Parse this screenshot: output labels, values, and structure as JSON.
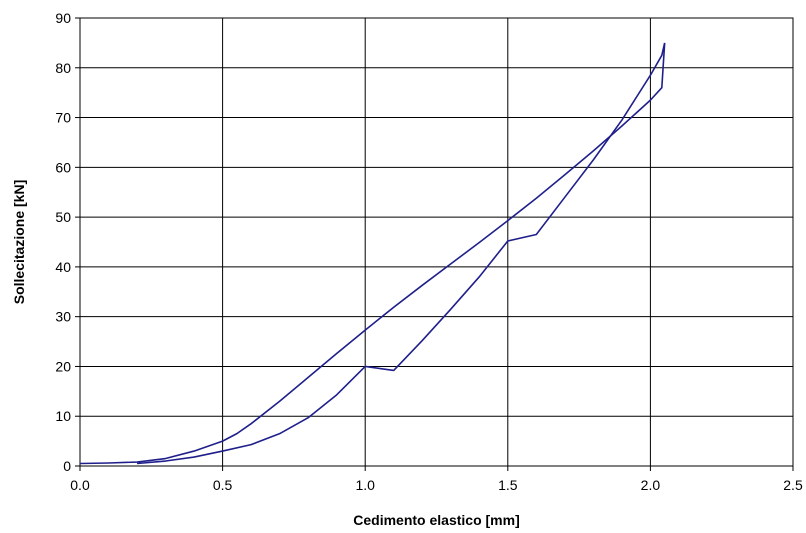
{
  "chart_data": {
    "type": "line",
    "title": "",
    "xlabel": "Cedimento elastico [mm]",
    "ylabel": "Sollecitazione [kN]",
    "xlim": [
      0,
      2.5
    ],
    "ylim": [
      0,
      90
    ],
    "x_ticks": [
      0.0,
      0.5,
      1.0,
      1.5,
      2.0,
      2.5
    ],
    "x_tick_labels": [
      "0.0",
      "0.5",
      "1.0",
      "1.5",
      "2.0",
      "2.5"
    ],
    "y_ticks": [
      0,
      10,
      20,
      30,
      40,
      50,
      60,
      70,
      80,
      90
    ],
    "y_tick_labels": [
      "0",
      "10",
      "20",
      "30",
      "40",
      "50",
      "60",
      "70",
      "80",
      "90"
    ],
    "grid": true,
    "legend": "none",
    "series_color": "#1f1f8c",
    "series": [
      {
        "x": [
          0.0,
          0.1,
          0.2,
          0.3,
          0.4,
          0.5,
          0.55,
          0.6,
          0.7,
          0.8,
          0.9,
          1.0,
          1.1,
          1.2,
          1.3,
          1.4,
          1.5,
          1.6,
          1.7,
          1.8,
          1.9,
          2.0,
          2.04,
          2.05
        ],
        "y": [
          0.5,
          0.6,
          0.8,
          1.5,
          3.0,
          5.0,
          6.5,
          8.5,
          13.0,
          17.8,
          22.6,
          27.3,
          31.9,
          36.3,
          40.6,
          44.9,
          49.3,
          53.8,
          58.5,
          63.3,
          68.3,
          73.5,
          76.0,
          85.0
        ]
      },
      {
        "x": [
          2.05,
          2.04,
          2.0,
          1.9,
          1.8,
          1.7,
          1.6,
          1.5,
          1.4,
          1.3,
          1.2,
          1.1,
          1.0,
          0.9,
          0.8,
          0.7,
          0.6,
          0.5,
          0.4,
          0.3,
          0.2
        ],
        "y": [
          85.0,
          82.5,
          78.5,
          69.5,
          61.5,
          54.0,
          46.5,
          45.2,
          38.0,
          31.5,
          25.2,
          19.2,
          20.0,
          14.3,
          9.7,
          6.5,
          4.3,
          3.0,
          1.8,
          1.0,
          0.5
        ]
      }
    ]
  }
}
